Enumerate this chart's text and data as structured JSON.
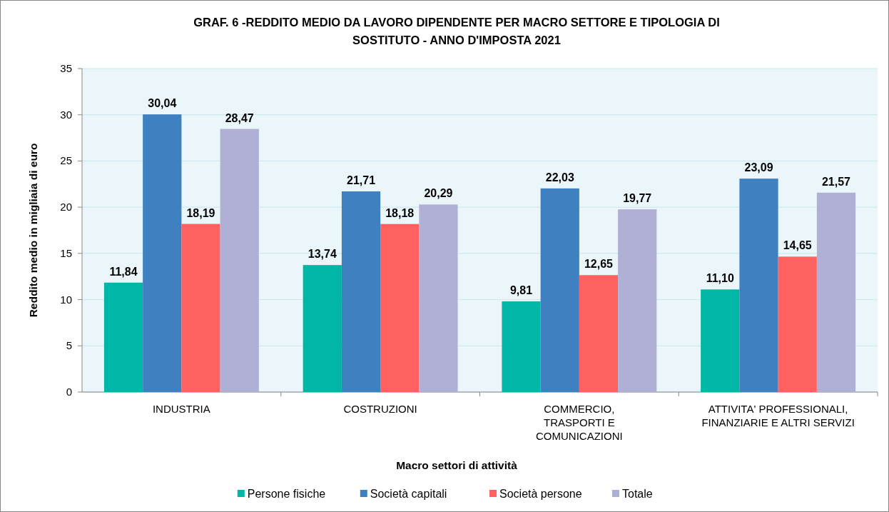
{
  "chart_data": {
    "type": "bar",
    "title": "GRAF. 6 -REDDITO MEDIO DA LAVORO DIPENDENTE PER MACRO SETTORE E TIPOLOGIA DI\nSOSTITUTO - ANNO D'IMPOSTA 2021",
    "xlabel": "Macro settori di attività",
    "ylabel": "Reddito medio in migliaia di euro",
    "categories": [
      "INDUSTRIA",
      "COSTRUZIONI",
      "COMMERCIO,\nTRASPORTI E\nCOMUNICAZIONI",
      "ATTIVITA' PROFESSIONALI,\nFINANZIARIE E ALTRI SERVIZI"
    ],
    "series": [
      {
        "name": "Persone fisiche",
        "color": "#00b6a6",
        "values": [
          11.84,
          13.74,
          9.81,
          11.1
        ],
        "value_labels": [
          "11,84",
          "13,74",
          "9,81",
          "11,10"
        ]
      },
      {
        "name": "Società capitali",
        "color": "#3f80c0",
        "values": [
          30.04,
          21.71,
          22.03,
          23.09
        ],
        "value_labels": [
          "30,04",
          "21,71",
          "22,03",
          "23,09"
        ]
      },
      {
        "name": "Società persone",
        "color": "#ff6060",
        "values": [
          18.19,
          18.18,
          12.65,
          14.65
        ],
        "value_labels": [
          "18,19",
          "18,18",
          "12,65",
          "14,65"
        ]
      },
      {
        "name": "Totale",
        "color": "#b0b0d6",
        "values": [
          28.47,
          20.29,
          19.77,
          21.57
        ],
        "value_labels": [
          "28,47",
          "20,29",
          "19,77",
          "21,57"
        ]
      }
    ],
    "ylim": [
      0,
      35
    ],
    "yticks": [
      0,
      5,
      10,
      15,
      20,
      25,
      30,
      35
    ],
    "grid": "y",
    "legend": "bottom"
  }
}
